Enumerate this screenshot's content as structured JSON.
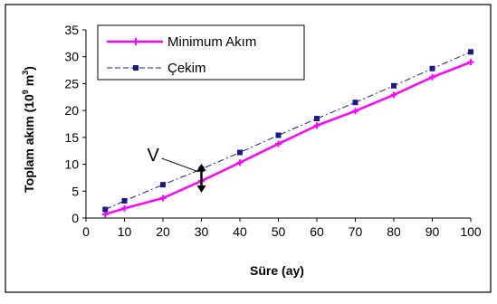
{
  "chart_data": {
    "type": "line",
    "xlabel": "Süre (ay)",
    "ylabel_prefix": "Toplam akım (10",
    "ylabel_exp1": "9",
    "ylabel_mid": " m",
    "ylabel_exp2": "3",
    "ylabel_suffix": ")",
    "xlim": [
      0,
      100
    ],
    "ylim": [
      0,
      35
    ],
    "xticks": [
      0,
      10,
      20,
      30,
      40,
      50,
      60,
      70,
      80,
      90,
      100
    ],
    "yticks": [
      0,
      5,
      10,
      15,
      20,
      25,
      30,
      35
    ],
    "grid": false,
    "legend_position": "top-left",
    "annotation": {
      "text": "V",
      "x": 30
    },
    "series": [
      {
        "name": "Minimum Akım",
        "color": "#ff00ff",
        "line_style": "solid",
        "marker": "plus",
        "points": [
          [
            5,
            0.7
          ],
          [
            10,
            1.8
          ],
          [
            20,
            3.7
          ],
          [
            30,
            6.9
          ],
          [
            40,
            10.3
          ],
          [
            50,
            13.8
          ],
          [
            60,
            17.2
          ],
          [
            70,
            19.9
          ],
          [
            80,
            22.9
          ],
          [
            90,
            26.2
          ],
          [
            100,
            29.0
          ]
        ]
      },
      {
        "name": "Çekim",
        "color": "#1a1a8c",
        "line_style": "dashed",
        "marker": "square",
        "points": [
          [
            5,
            1.6
          ],
          [
            10,
            3.2
          ],
          [
            20,
            6.2
          ],
          [
            30,
            9.1
          ],
          [
            40,
            12.2
          ],
          [
            50,
            15.4
          ],
          [
            60,
            18.5
          ],
          [
            70,
            21.5
          ],
          [
            80,
            24.6
          ],
          [
            90,
            27.8
          ],
          [
            100,
            30.9
          ]
        ]
      }
    ]
  }
}
